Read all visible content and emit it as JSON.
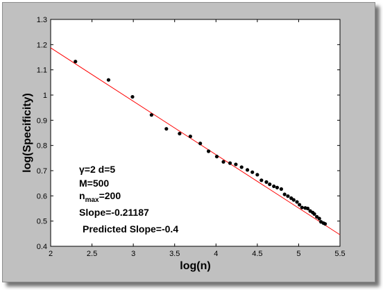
{
  "chart_data": {
    "type": "scatter",
    "title": "",
    "xlabel": "log(n)",
    "ylabel": "log(Specificity)",
    "xlim": [
      2,
      5.5
    ],
    "ylim": [
      0.4,
      1.3
    ],
    "xticks": [
      2,
      2.5,
      3,
      3.5,
      4,
      4.5,
      5,
      5.5
    ],
    "xtick_labels": [
      "2",
      "2.5",
      "3",
      "3.5",
      "4",
      "4.5",
      "5",
      "5.5"
    ],
    "yticks": [
      0.4,
      0.5,
      0.6,
      0.7,
      0.8,
      0.9,
      1.0,
      1.1,
      1.2,
      1.3
    ],
    "ytick_labels": [
      "0.4",
      "0.5",
      "0.6",
      "0.7",
      "0.8",
      "0.9",
      "1",
      "1.1",
      "1.2",
      "1.3"
    ],
    "grid": false,
    "colors": {
      "plot_bg": "#ffffff",
      "frame_bg": "#c0c0c0",
      "points": "#000000",
      "fit_line": "#ff0000"
    },
    "series": [
      {
        "values": [
          [
            2.3,
            1.133
          ],
          [
            2.7,
            1.06
          ],
          [
            2.99,
            0.993
          ],
          [
            3.22,
            0.921
          ],
          [
            3.4,
            0.866
          ],
          [
            3.56,
            0.847
          ],
          [
            3.69,
            0.836
          ],
          [
            3.81,
            0.808
          ],
          [
            3.91,
            0.777
          ],
          [
            4.01,
            0.756
          ],
          [
            4.09,
            0.735
          ],
          [
            4.17,
            0.73
          ],
          [
            4.24,
            0.725
          ],
          [
            4.31,
            0.714
          ],
          [
            4.38,
            0.703
          ],
          [
            4.44,
            0.694
          ],
          [
            4.5,
            0.684
          ],
          [
            4.55,
            0.662
          ],
          [
            4.61,
            0.655
          ],
          [
            4.65,
            0.646
          ],
          [
            4.7,
            0.638
          ],
          [
            4.74,
            0.633
          ],
          [
            4.79,
            0.627
          ],
          [
            4.83,
            0.606
          ],
          [
            4.87,
            0.599
          ],
          [
            4.91,
            0.591
          ],
          [
            4.94,
            0.584
          ],
          [
            4.98,
            0.576
          ],
          [
            5.01,
            0.565
          ],
          [
            5.04,
            0.554
          ],
          [
            5.08,
            0.552
          ],
          [
            5.11,
            0.55
          ],
          [
            5.14,
            0.54
          ],
          [
            5.17,
            0.534
          ],
          [
            5.19,
            0.528
          ],
          [
            5.22,
            0.517
          ],
          [
            5.25,
            0.51
          ],
          [
            5.27,
            0.497
          ],
          [
            5.3,
            0.492
          ],
          [
            5.32,
            0.489
          ]
        ]
      }
    ],
    "fit_line": {
      "slope": -0.21187,
      "intercept": 1.611,
      "x_range": [
        2,
        5.5
      ]
    },
    "annotations": {
      "gamma_d": "γ=2 d=5",
      "m": "M=500",
      "nmax_base": "n",
      "nmax_sub": "max",
      "nmax_value": "=200",
      "slope": "Slope=-0.21187",
      "predicted": "Predicted Slope=-0.4"
    }
  }
}
